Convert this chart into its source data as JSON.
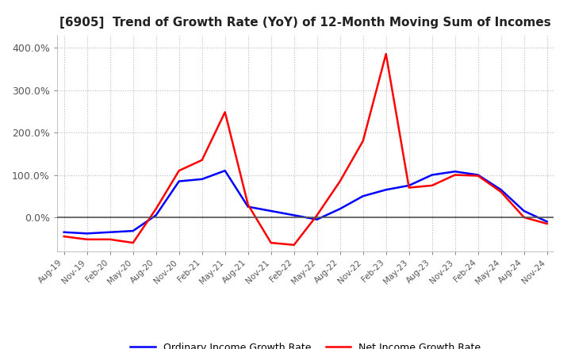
{
  "title": "[6905]  Trend of Growth Rate (YoY) of 12-Month Moving Sum of Incomes",
  "legend_labels": [
    "Ordinary Income Growth Rate",
    "Net Income Growth Rate"
  ],
  "line_colors": [
    "#0000ff",
    "#ff0000"
  ],
  "background_color": "#ffffff",
  "plot_bg_color": "#ffffff",
  "grid_color": "#bbbbbb",
  "x_labels": [
    "Aug-19",
    "Nov-19",
    "Feb-20",
    "May-20",
    "Aug-20",
    "Nov-20",
    "Feb-21",
    "May-21",
    "Aug-21",
    "Nov-21",
    "Feb-22",
    "May-22",
    "Aug-22",
    "Nov-22",
    "Feb-23",
    "May-23",
    "Aug-23",
    "Nov-23",
    "Feb-24",
    "May-24",
    "Aug-24",
    "Nov-24"
  ],
  "ordinary_income": [
    -35,
    -38,
    -35,
    -32,
    5,
    85,
    90,
    110,
    25,
    15,
    5,
    -5,
    20,
    50,
    65,
    75,
    100,
    108,
    100,
    65,
    15,
    -10
  ],
  "net_income": [
    -45,
    -52,
    -52,
    -60,
    20,
    110,
    135,
    248,
    30,
    -60,
    -65,
    5,
    85,
    180,
    385,
    70,
    75,
    100,
    98,
    60,
    0,
    -15
  ],
  "ylim": [
    -80,
    430
  ],
  "yticks": [
    0,
    100,
    200,
    300,
    400
  ],
  "zero_line_color": "#555555",
  "spine_color": "#aaaaaa"
}
